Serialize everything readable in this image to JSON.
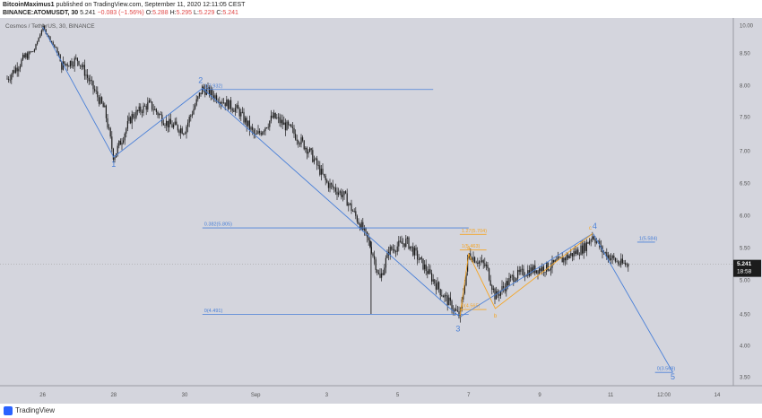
{
  "header": {
    "author": "BitcoinMaximus1",
    "published_text": "published on TradingView.com, September 11, 2020 12:11:05 CEST",
    "symbol": "BINANCE:ATOMUSDT, 30",
    "last": "5.241",
    "change": "−0.083 (−1.56%)",
    "o_label": "O:",
    "o": "5.288",
    "h_label": "H:",
    "h": "5.295",
    "l_label": "L:",
    "l": "5.229",
    "c_label": "C:",
    "c": "5.241"
  },
  "footer": {
    "brand": "TradingView"
  },
  "colors": {
    "background": "#d4d5dd",
    "candle": "#1e1e1e",
    "wave_line": "#4a80d8",
    "fib_line": "#4a80d8",
    "abc_line": "#f5a524",
    "price_tag_bg": "#1c1c1c",
    "price_tag_fg": "#ffffff"
  },
  "chart_data": {
    "type": "candlestick",
    "title": "Cosmos / TetherUS, 30, BINANCE",
    "y_ticks": [
      "10.00",
      "8.50",
      "8.00",
      "7.50",
      "7.00",
      "6.50",
      "6.00",
      "5.50",
      "5.00",
      "4.50",
      "4.00",
      "3.50"
    ],
    "x_ticks": [
      "26",
      "28",
      "30",
      "Sep",
      "3",
      "5",
      "7",
      "9",
      "11",
      "12:00",
      "14"
    ],
    "last_price_label": "5.241",
    "countdown_label": "18:58",
    "price_path": [
      [
        "Aug 25 00:00",
        8.1
      ],
      [
        "Aug 25 18:00",
        8.6
      ],
      [
        "Aug 26 00:00",
        9.9
      ],
      [
        "Aug 26 12:00",
        8.3
      ],
      [
        "Aug 27 00:00",
        8.4
      ],
      [
        "Aug 27 18:00",
        7.6
      ],
      [
        "Aug 28 00:00",
        6.9
      ],
      [
        "Aug 28 12:00",
        7.5
      ],
      [
        "Aug 29 00:00",
        7.7
      ],
      [
        "Aug 29 12:00",
        7.4
      ],
      [
        "Aug 30 00:00",
        7.3
      ],
      [
        "Aug 30 12:00",
        7.95
      ],
      [
        "Aug 31 12:00",
        7.6
      ],
      [
        "Sep 1 00:00",
        7.2
      ],
      [
        "Sep 1 12:00",
        7.5
      ],
      [
        "Sep 2 00:00",
        7.3
      ],
      [
        "Sep 2 12:00",
        7.0
      ],
      [
        "Sep 3 00:00",
        6.5
      ],
      [
        "Sep 3 12:00",
        6.3
      ],
      [
        "Sep 4 00:00",
        5.8
      ],
      [
        "Sep 4 06:00",
        5.5
      ],
      [
        "Sep 4 12:00",
        5.0
      ],
      [
        "Sep 4 18:00",
        5.45
      ],
      [
        "Sep 5 06:00",
        5.6
      ],
      [
        "Sep 5 18:00",
        5.2
      ],
      [
        "Sep 6 06:00",
        4.8
      ],
      [
        "Sep 6 18:00",
        4.45
      ],
      [
        "Sep 7 00:00",
        5.4
      ],
      [
        "Sep 7 12:00",
        5.2
      ],
      [
        "Sep 7 18:00",
        4.75
      ],
      [
        "Sep 8 06:00",
        5.05
      ],
      [
        "Sep 8 18:00",
        5.15
      ],
      [
        "Sep 9 06:00",
        5.2
      ],
      [
        "Sep 9 18:00",
        5.35
      ],
      [
        "Sep 10 06:00",
        5.5
      ],
      [
        "Sep 10 12:00",
        5.7
      ],
      [
        "Sep 10 18:00",
        5.45
      ],
      [
        "Sep 11 06:00",
        5.25
      ],
      [
        "Sep 11 12:00",
        5.24
      ]
    ],
    "elliott_wave": [
      {
        "label": "1",
        "time": "Aug 28 00:00",
        "price": 6.9
      },
      {
        "label": "2",
        "time": "Aug 30 12:00",
        "price": 7.95
      },
      {
        "label": "3",
        "time": "Sep 6 18:00",
        "price": 4.45
      },
      {
        "label": "4",
        "time": "Sep 10 12:00",
        "price": 5.72
      },
      {
        "label": "5",
        "time": "Sep 12 18:00",
        "price": 3.57
      }
    ],
    "abc_correction": [
      {
        "label": "A",
        "time": "Sep 7 00:00",
        "price": 5.4
      },
      {
        "label": "B",
        "time": "Sep 7 18:00",
        "price": 4.58
      },
      {
        "label": "C",
        "time": "Sep 10 12:00",
        "price": 5.72
      }
    ],
    "fib_levels": [
      {
        "label": "1(7.932)",
        "price": 7.932,
        "from": "Aug 30 12:00",
        "to": "Sep 6 00:00",
        "color": "blue"
      },
      {
        "label": "0.382(5.805)",
        "price": 5.805,
        "from": "Aug 30 12:00",
        "to": "Sep 7 00:00",
        "color": "blue"
      },
      {
        "label": "0(4.491)",
        "price": 4.491,
        "from": "Aug 30 12:00",
        "to": "Sep 7 00:00",
        "color": "blue"
      },
      {
        "label": "1.27(5.704)",
        "price": 5.704,
        "from": "Sep 6 18:00",
        "to": "Sep 7 12:00",
        "color": "orange"
      },
      {
        "label": "1(5.463)",
        "price": 5.463,
        "from": "Sep 6 18:00",
        "to": "Sep 7 12:00",
        "color": "orange"
      },
      {
        "label": "0(4.565)",
        "price": 4.565,
        "from": "Sep 6 18:00",
        "to": "Sep 7 12:00",
        "color": "orange"
      },
      {
        "label": "1(5.584)",
        "price": 5.584,
        "from": "Sep 11 18:00",
        "to": "Sep 12 06:00",
        "color": "blue"
      },
      {
        "label": "0(3.569)",
        "price": 3.569,
        "from": "Sep 12 06:00",
        "to": "Sep 12 18:00",
        "color": "blue"
      }
    ]
  }
}
